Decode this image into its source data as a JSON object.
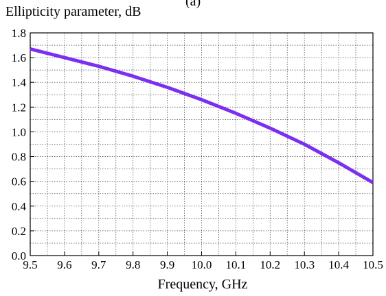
{
  "chart_data": {
    "type": "line",
    "panel_label": "(a)",
    "title": "",
    "ylabel": "Ellipticity parameter, dB",
    "xlabel": "Frequency, GHz",
    "xlim": [
      9.5,
      10.5
    ],
    "ylim": [
      0.0,
      1.8
    ],
    "x_ticks": [
      "9.5",
      "9.6",
      "9.7",
      "9.8",
      "9.9",
      "10.0",
      "10.1",
      "10.2",
      "10.3",
      "10.4",
      "10.5"
    ],
    "y_ticks": [
      "0.0",
      "0.2",
      "0.4",
      "0.6",
      "0.8",
      "1.0",
      "1.2",
      "1.4",
      "1.6",
      "1.8"
    ],
    "grid": true,
    "series": [
      {
        "color": "#7b2ff0",
        "x": [
          9.5,
          9.6,
          9.7,
          9.8,
          9.9,
          10.0,
          10.1,
          10.2,
          10.3,
          10.4,
          10.5
        ],
        "y": [
          1.67,
          1.6,
          1.53,
          1.45,
          1.36,
          1.26,
          1.15,
          1.03,
          0.9,
          0.75,
          0.59
        ]
      }
    ]
  }
}
